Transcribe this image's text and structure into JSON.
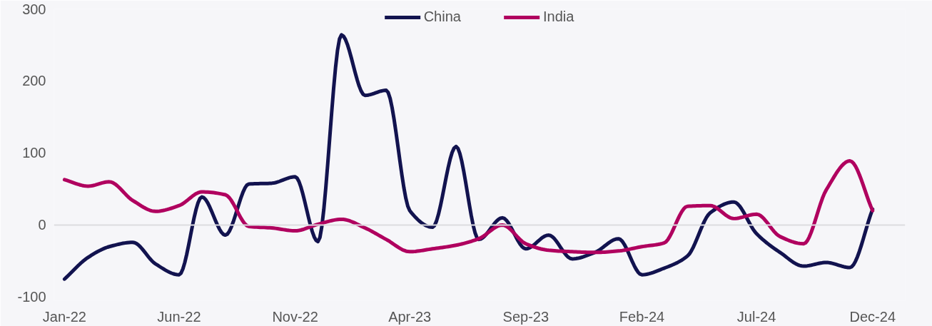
{
  "chart_data": {
    "type": "line",
    "x": [
      "2022-01",
      "2022-02",
      "2022-03",
      "2022-04",
      "2022-05",
      "2022-06",
      "2022-07",
      "2022-08",
      "2022-09",
      "2022-10",
      "2022-11",
      "2022-12",
      "2023-01",
      "2023-02",
      "2023-03",
      "2023-04",
      "2023-05",
      "2023-06",
      "2023-07",
      "2023-08",
      "2023-09",
      "2023-10",
      "2023-11",
      "2023-12",
      "2024-01",
      "2024-02",
      "2024-03",
      "2024-04",
      "2024-05",
      "2024-06",
      "2024-07",
      "2024-08",
      "2024-09",
      "2024-10",
      "2024-11",
      "2024-12"
    ],
    "series": [
      {
        "name": "China",
        "color": "#12134f",
        "values": [
          -75,
          -45,
          -30,
          -24,
          -54,
          -69,
          39,
          -14,
          57,
          58,
          67,
          -23,
          264,
          180,
          187,
          20,
          -3,
          109,
          -20,
          10,
          -33,
          -14,
          -47,
          -38,
          -19,
          -69,
          -60,
          -43,
          17,
          32,
          -12,
          -38,
          -57,
          -52,
          -59,
          22
        ]
      },
      {
        "name": "India",
        "color": "#b0005f",
        "values": [
          63,
          54,
          60,
          34,
          19,
          27,
          46,
          42,
          -2,
          -4,
          -8,
          1,
          8,
          -4,
          -20,
          -37,
          -33,
          -28,
          -19,
          0,
          -26,
          -35,
          -37,
          -38,
          -36,
          -30,
          -25,
          26,
          27,
          9,
          15,
          -16,
          -26,
          49,
          89,
          20
        ]
      }
    ],
    "xlim": [
      "2021-12-18",
      "2025-01-13"
    ],
    "xticks": [
      {
        "value": "2022-01",
        "label": "Jan-22"
      },
      {
        "value": "2022-06",
        "label": "Jun-22"
      },
      {
        "value": "2022-11",
        "label": "Nov-22"
      },
      {
        "value": "2023-04",
        "label": "Apr-23"
      },
      {
        "value": "2023-09",
        "label": "Sep-23"
      },
      {
        "value": "2024-02",
        "label": "Feb-24"
      },
      {
        "value": "2024-07",
        "label": "Jul-24"
      },
      {
        "value": "2024-12",
        "label": "Dec-24"
      }
    ],
    "ylim": [
      -105,
      300
    ],
    "yticks": [
      -100,
      0,
      100,
      200,
      300
    ],
    "ref_lines": [
      {
        "axis": "y",
        "value": 0,
        "color": "#dcdce0"
      }
    ],
    "legend": "top",
    "grid": false,
    "line_style": "solid"
  }
}
